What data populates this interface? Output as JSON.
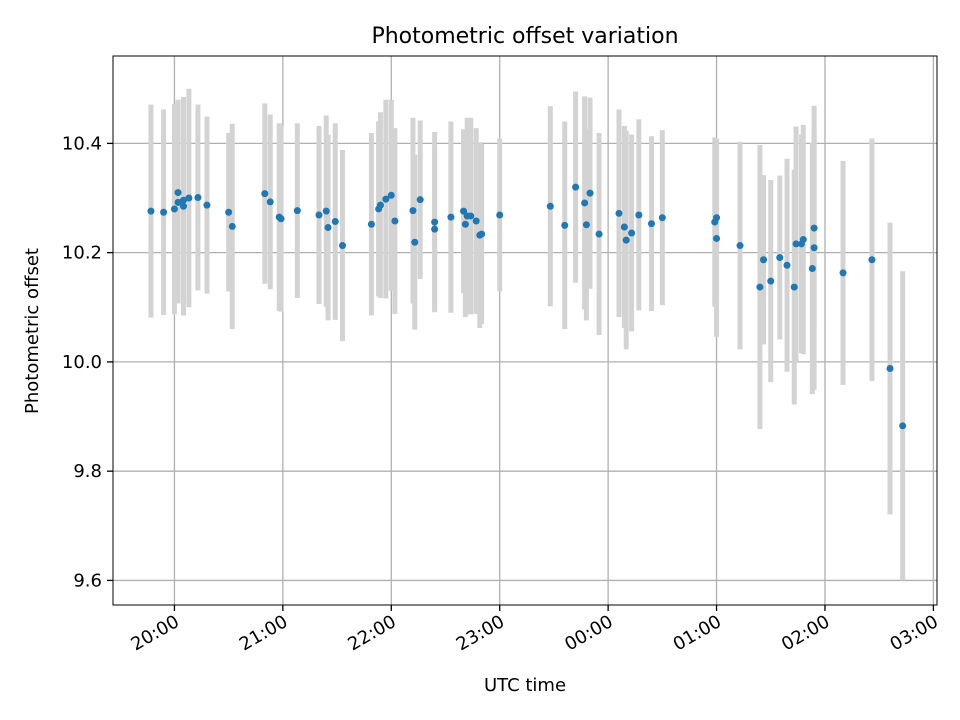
{
  "chart_data": {
    "type": "scatter",
    "title": "Photometric offset variation",
    "xlabel": "UTC time",
    "ylabel": "Photometric offset",
    "x_tick_labels": [
      "20:00",
      "21:00",
      "22:00",
      "23:00",
      "00:00",
      "01:00",
      "02:00",
      "03:00"
    ],
    "y_tick_labels": [
      "9.6",
      "9.8",
      "10.0",
      "10.2",
      "10.4"
    ],
    "y_ticks": [
      9.6,
      9.8,
      10.0,
      10.2,
      10.4
    ],
    "ylim": [
      9.555,
      10.56
    ],
    "x_axis_start_label": "19:26",
    "x_axis_end_label": "03:02",
    "grid": true,
    "colors": {
      "points": "#1f77b4",
      "error_bars": "#d3d3d3",
      "grid": "#b0b0b0"
    },
    "series": [
      {
        "points": [
          {
            "x": "19:47",
            "y": 10.276,
            "yerr": 0.195
          },
          {
            "x": "19:54",
            "y": 10.274,
            "yerr": 0.188
          },
          {
            "x": "20:00",
            "y": 10.28,
            "yerr": 0.192
          },
          {
            "x": "20:02",
            "y": 10.292,
            "yerr": 0.185
          },
          {
            "x": "20:02",
            "y": 10.31,
            "yerr": 0.17
          },
          {
            "x": "20:05",
            "y": 10.285,
            "yerr": 0.2
          },
          {
            "x": "20:05",
            "y": 10.296,
            "yerr": 0.186
          },
          {
            "x": "20:08",
            "y": 10.3,
            "yerr": 0.2
          },
          {
            "x": "20:13",
            "y": 10.301,
            "yerr": 0.17
          },
          {
            "x": "20:18",
            "y": 10.287,
            "yerr": 0.162
          },
          {
            "x": "20:30",
            "y": 10.274,
            "yerr": 0.145
          },
          {
            "x": "20:32",
            "y": 10.248,
            "yerr": 0.188
          },
          {
            "x": "20:50",
            "y": 10.308,
            "yerr": 0.165
          },
          {
            "x": "20:53",
            "y": 10.293,
            "yerr": 0.16
          },
          {
            "x": "20:58",
            "y": 10.265,
            "yerr": 0.172
          },
          {
            "x": "20:59",
            "y": 10.262,
            "yerr": 0.17
          },
          {
            "x": "21:08",
            "y": 10.277,
            "yerr": 0.16
          },
          {
            "x": "21:20",
            "y": 10.269,
            "yerr": 0.163
          },
          {
            "x": "21:24",
            "y": 10.276,
            "yerr": 0.175
          },
          {
            "x": "21:25",
            "y": 10.246,
            "yerr": 0.17
          },
          {
            "x": "21:29",
            "y": 10.257,
            "yerr": 0.18
          },
          {
            "x": "21:33",
            "y": 10.213,
            "yerr": 0.175
          },
          {
            "x": "21:49",
            "y": 10.252,
            "yerr": 0.167
          },
          {
            "x": "21:53",
            "y": 10.28,
            "yerr": 0.16
          },
          {
            "x": "21:54",
            "y": 10.287,
            "yerr": 0.17
          },
          {
            "x": "21:57",
            "y": 10.298,
            "yerr": 0.182
          },
          {
            "x": "22:00",
            "y": 10.305,
            "yerr": 0.175
          },
          {
            "x": "22:02",
            "y": 10.258,
            "yerr": 0.17
          },
          {
            "x": "22:12",
            "y": 10.277,
            "yerr": 0.17
          },
          {
            "x": "22:13",
            "y": 10.219,
            "yerr": 0.16
          },
          {
            "x": "22:16",
            "y": 10.297,
            "yerr": 0.145
          },
          {
            "x": "22:24",
            "y": 10.256,
            "yerr": 0.165
          },
          {
            "x": "22:24",
            "y": 10.243,
            "yerr": 0.15
          },
          {
            "x": "22:33",
            "y": 10.265,
            "yerr": 0.175
          },
          {
            "x": "22:40",
            "y": 10.276,
            "yerr": 0.15
          },
          {
            "x": "22:41",
            "y": 10.252,
            "yerr": 0.17
          },
          {
            "x": "22:42",
            "y": 10.267,
            "yerr": 0.18
          },
          {
            "x": "22:44",
            "y": 10.267,
            "yerr": 0.18
          },
          {
            "x": "22:47",
            "y": 10.258,
            "yerr": 0.17
          },
          {
            "x": "22:49",
            "y": 10.232,
            "yerr": 0.17
          },
          {
            "x": "22:50",
            "y": 10.234,
            "yerr": 0.165
          },
          {
            "x": "23:00",
            "y": 10.269,
            "yerr": 0.14
          },
          {
            "x": "23:28",
            "y": 10.285,
            "yerr": 0.183
          },
          {
            "x": "23:36",
            "y": 10.25,
            "yerr": 0.19
          },
          {
            "x": "23:42",
            "y": 10.32,
            "yerr": 0.175
          },
          {
            "x": "23:47",
            "y": 10.291,
            "yerr": 0.195
          },
          {
            "x": "23:48",
            "y": 10.251,
            "yerr": 0.175
          },
          {
            "x": "23:50",
            "y": 10.309,
            "yerr": 0.175
          },
          {
            "x": "23:55",
            "y": 10.234,
            "yerr": 0.185
          },
          {
            "x": "00:06",
            "y": 10.272,
            "yerr": 0.19
          },
          {
            "x": "00:09",
            "y": 10.247,
            "yerr": 0.185
          },
          {
            "x": "00:10",
            "y": 10.223,
            "yerr": 0.2
          },
          {
            "x": "00:13",
            "y": 10.236,
            "yerr": 0.18
          },
          {
            "x": "00:17",
            "y": 10.269,
            "yerr": 0.175
          },
          {
            "x": "00:24",
            "y": 10.253,
            "yerr": 0.16
          },
          {
            "x": "00:30",
            "y": 10.264,
            "yerr": 0.16
          },
          {
            "x": "00:59",
            "y": 10.256,
            "yerr": 0.155
          },
          {
            "x": "01:00",
            "y": 10.264,
            "yerr": 0.145
          },
          {
            "x": "01:00",
            "y": 10.226,
            "yerr": 0.18
          },
          {
            "x": "01:13",
            "y": 10.213,
            "yerr": 0.19
          },
          {
            "x": "01:24",
            "y": 10.137,
            "yerr": 0.26
          },
          {
            "x": "01:26",
            "y": 10.187,
            "yerr": 0.155
          },
          {
            "x": "01:30",
            "y": 10.148,
            "yerr": 0.185
          },
          {
            "x": "01:35",
            "y": 10.191,
            "yerr": 0.15
          },
          {
            "x": "01:39",
            "y": 10.177,
            "yerr": 0.195
          },
          {
            "x": "01:43",
            "y": 10.137,
            "yerr": 0.215
          },
          {
            "x": "01:44",
            "y": 10.216,
            "yerr": 0.215
          },
          {
            "x": "01:47",
            "y": 10.216,
            "yerr": 0.2
          },
          {
            "x": "01:48",
            "y": 10.224,
            "yerr": 0.21
          },
          {
            "x": "01:53",
            "y": 10.171,
            "yerr": 0.23
          },
          {
            "x": "01:54",
            "y": 10.209,
            "yerr": 0.26
          },
          {
            "x": "01:54",
            "y": 10.245,
            "yerr": 0.185
          },
          {
            "x": "02:10",
            "y": 10.163,
            "yerr": 0.205
          },
          {
            "x": "02:26",
            "y": 10.187,
            "yerr": 0.222
          },
          {
            "x": "02:36",
            "y": 9.988,
            "yerr": 0.267
          },
          {
            "x": "02:43",
            "y": 9.883,
            "yerr": 0.283
          }
        ]
      }
    ]
  }
}
